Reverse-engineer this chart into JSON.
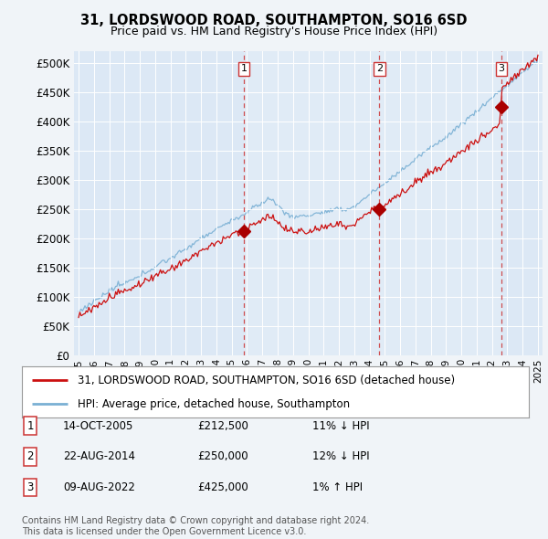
{
  "title": "31, LORDSWOOD ROAD, SOUTHAMPTON, SO16 6SD",
  "subtitle": "Price paid vs. HM Land Registry's House Price Index (HPI)",
  "background_color": "#f0f4f8",
  "plot_bg_color": "#dce8f5",
  "plot_bg_highlight": "#e4eef8",
  "y_ticks": [
    0,
    50000,
    100000,
    150000,
    200000,
    250000,
    300000,
    350000,
    400000,
    450000,
    500000
  ],
  "y_tick_labels": [
    "£0",
    "£50K",
    "£100K",
    "£150K",
    "£200K",
    "£250K",
    "£300K",
    "£350K",
    "£400K",
    "£450K",
    "£500K"
  ],
  "x_start_year": 1995,
  "x_end_year": 2025,
  "hpi_color": "#7ab0d4",
  "price_color": "#cc1111",
  "marker_color": "#aa0000",
  "dashed_line_color": "#cc3333",
  "sales": [
    {
      "date": 2005.79,
      "price": 212500,
      "label": "1"
    },
    {
      "date": 2014.64,
      "price": 250000,
      "label": "2"
    },
    {
      "date": 2022.61,
      "price": 425000,
      "label": "3"
    }
  ],
  "sale_table": [
    {
      "num": "1",
      "date": "14-OCT-2005",
      "price": "£212,500",
      "hpi": "11% ↓ HPI"
    },
    {
      "num": "2",
      "date": "22-AUG-2014",
      "price": "£250,000",
      "hpi": "12% ↓ HPI"
    },
    {
      "num": "3",
      "date": "09-AUG-2022",
      "price": "£425,000",
      "hpi": "1% ↑ HPI"
    }
  ],
  "legend_line1": "31, LORDSWOOD ROAD, SOUTHAMPTON, SO16 6SD (detached house)",
  "legend_line2": "HPI: Average price, detached house, Southampton",
  "footer": "Contains HM Land Registry data © Crown copyright and database right 2024.\nThis data is licensed under the Open Government Licence v3.0."
}
